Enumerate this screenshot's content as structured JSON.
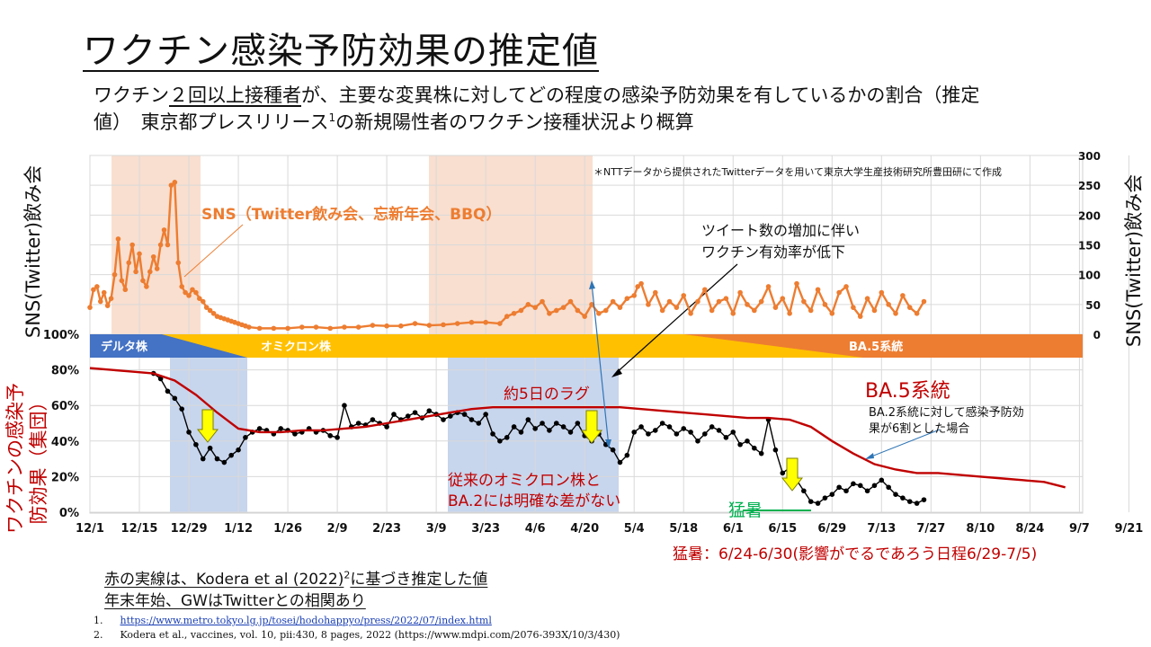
{
  "slide": {
    "title": "ワクチン感染予防効果の推定値",
    "subtitle_line1_before": "ワクチン",
    "subtitle_line1_underlined": "２回以上接種者",
    "subtitle_line1_after": "が、主要な変異株に対してどの程度の感染予防効果を有しているかの割合（推定",
    "subtitle_line2_before": "値）　東京都プレスリリース",
    "subtitle_line2_sup": "1",
    "subtitle_line2_after": "の新規陽性者のワクチン接種状況より概算",
    "note1_before": "赤の実線は、Kodera et al (2022)",
    "note1_sup": "2",
    "note1_after": "に基づき推定した値",
    "note2": "年末年始、GWはTwitterとの相関あり",
    "ref1_num": "1.",
    "ref1_text": "https://www.metro.tokyo.lg.jp/tosei/hodohappyo/press/2022/07/index.html",
    "ref2_num": "2.",
    "ref2_text": "Kodera et al., vaccines, vol. 10, pii:430, 8 pages, 2022 (https://www.mdpi.com/2076-393X/10/3/430)"
  },
  "chart_data": {
    "type": "line",
    "credit": "＊NTTデータから提供されたTwitterデータを用いて東京大学生産技術研究所豊田研にて作成",
    "left_axis_top_label": "SNS(Twitter)飲み会",
    "right_axis_label": "SNS(Twitter)飲み会",
    "left_axis_bottom_label_line1": "ワクチンの感染予",
    "left_axis_bottom_label_line2": "防効果（集団）",
    "x_ticks": [
      "12/1",
      "12/15",
      "12/29",
      "1/12",
      "1/26",
      "2/9",
      "2/23",
      "3/9",
      "3/23",
      "4/6",
      "4/20",
      "5/4",
      "5/18",
      "6/1",
      "6/15",
      "6/29",
      "7/13",
      "7/27",
      "8/10",
      "8/24",
      "9/7",
      "9/21"
    ],
    "y_left_ticks": [
      "0%",
      "20%",
      "40%",
      "60%",
      "80%",
      "100%"
    ],
    "y_right_ticks": [
      "0",
      "50",
      "100",
      "150",
      "200",
      "250",
      "300"
    ],
    "sns_ylim": [
      0,
      300
    ],
    "vaccine_ylim": [
      0,
      100
    ],
    "variant_bands": [
      {
        "label": "デルタ株",
        "color": "#4472c4"
      },
      {
        "label": "オミクロン株",
        "color": "#ffc000"
      },
      {
        "label": "BA.5系統",
        "color": "#ed7d31"
      }
    ],
    "annotations": {
      "sns_label": "SNS（Twitter飲み会、忘新年会、BBQ）",
      "tweet_line1": "ツイート数の増加に伴い",
      "tweet_line2": "ワクチン有効率が低下",
      "lag": "約5日のラグ",
      "omicron_line1": "従来のオミクロン株と",
      "omicron_line2": "BA.2には明確な差がない",
      "ba5_title": "BA.5系統",
      "ba5_line1": "BA.2系統に対して感染予防効",
      "ba5_line2": "果が6割とした場合",
      "heat": "猛暑",
      "heat_note": "猛暑：6/24-6/30(影響がでるであろう日程6/29-7/5)"
    },
    "series": [
      {
        "name": "SNS（Twitter飲み会、忘新年会、BBQ）",
        "color": "#ed7d31",
        "x": [
          0,
          1,
          2,
          3,
          4,
          5,
          6,
          7,
          8,
          9,
          10,
          11,
          12,
          13,
          14,
          15,
          16,
          17,
          18,
          19,
          20,
          21,
          22,
          23,
          24,
          25,
          26,
          27,
          28,
          29,
          30,
          31,
          32,
          33,
          34,
          35,
          36,
          37,
          38,
          39,
          40,
          41,
          42,
          43,
          44,
          45,
          48,
          52,
          56,
          60,
          64,
          68,
          72,
          76,
          80,
          84,
          88,
          92,
          96,
          100,
          104,
          108,
          112,
          116,
          118,
          120,
          122,
          124,
          126,
          128,
          130,
          132,
          134,
          136,
          138,
          140,
          142,
          144,
          146,
          148,
          150,
          152,
          154,
          155,
          156,
          158,
          160,
          162,
          164,
          166,
          168,
          170,
          172,
          174,
          176,
          178,
          180,
          182,
          184,
          186,
          188,
          190,
          192,
          194,
          196,
          198,
          200,
          202,
          204,
          206,
          208,
          210,
          212,
          214,
          216,
          218,
          220,
          222,
          224,
          226,
          228,
          230,
          232,
          234,
          236
        ],
        "values": [
          45,
          75,
          80,
          55,
          70,
          48,
          60,
          100,
          160,
          90,
          75,
          120,
          150,
          105,
          135,
          90,
          80,
          105,
          130,
          110,
          150,
          175,
          150,
          250,
          255,
          120,
          80,
          70,
          65,
          75,
          70,
          60,
          55,
          45,
          40,
          35,
          30,
          28,
          26,
          24,
          22,
          20,
          18,
          16,
          14,
          12,
          10,
          10,
          10,
          12,
          12,
          10,
          12,
          12,
          15,
          14,
          14,
          18,
          15,
          16,
          18,
          20,
          20,
          18,
          30,
          35,
          40,
          50,
          45,
          55,
          35,
          40,
          45,
          55,
          40,
          30,
          50,
          35,
          40,
          55,
          45,
          60,
          65,
          80,
          85,
          50,
          70,
          40,
          55,
          45,
          65,
          35,
          55,
          75,
          40,
          55,
          60,
          35,
          70,
          50,
          40,
          55,
          80,
          45,
          60,
          35,
          85,
          55,
          40,
          75,
          50,
          35,
          70,
          80,
          45,
          30,
          60,
          40,
          70,
          50,
          35,
          65,
          45,
          35,
          55
        ]
      },
      {
        "name": "ワクチンの感染予防効果（集団）",
        "color": "#000000",
        "x": [
          18,
          20,
          22,
          24,
          26,
          28,
          30,
          32,
          34,
          36,
          38,
          40,
          42,
          44,
          46,
          48,
          50,
          52,
          54,
          56,
          58,
          60,
          62,
          64,
          66,
          68,
          70,
          72,
          74,
          76,
          78,
          80,
          82,
          84,
          86,
          88,
          90,
          92,
          94,
          96,
          98,
          100,
          102,
          104,
          106,
          108,
          110,
          112,
          114,
          116,
          118,
          120,
          122,
          124,
          126,
          128,
          130,
          132,
          134,
          136,
          138,
          140,
          142,
          144,
          146,
          148,
          150,
          152,
          154,
          156,
          158,
          160,
          162,
          164,
          166,
          168,
          170,
          172,
          174,
          176,
          178,
          180,
          182,
          184,
          186,
          188,
          190,
          192,
          194,
          196,
          198,
          200,
          202,
          204,
          206,
          208,
          210,
          212,
          214,
          216,
          218,
          220,
          222,
          224,
          226,
          228,
          230,
          232,
          234,
          236
        ],
        "values": [
          78,
          75,
          68,
          64,
          58,
          45,
          38,
          30,
          36,
          30,
          28,
          32,
          35,
          42,
          45,
          47,
          46,
          44,
          47,
          46,
          44,
          45,
          47,
          45,
          46,
          43,
          42,
          60,
          48,
          50,
          49,
          52,
          50,
          48,
          55,
          52,
          54,
          56,
          53,
          57,
          55,
          52,
          54,
          56,
          55,
          52,
          50,
          55,
          44,
          40,
          42,
          48,
          45,
          52,
          47,
          50,
          46,
          50,
          48,
          45,
          50,
          43,
          40,
          44,
          38,
          35,
          28,
          32,
          45,
          48,
          44,
          46,
          50,
          48,
          44,
          47,
          45,
          40,
          44,
          48,
          46,
          42,
          45,
          38,
          40,
          36,
          33,
          52,
          35,
          22,
          25,
          18,
          12,
          6,
          5,
          8,
          10,
          14,
          12,
          16,
          15,
          12,
          15,
          18,
          14,
          10,
          8,
          6,
          5,
          7
        ]
      },
      {
        "name": "Kodera et al (2022) 推定値",
        "color": "#c00000",
        "x": [
          0,
          6,
          12,
          18,
          24,
          30,
          36,
          42,
          48,
          54,
          60,
          66,
          72,
          78,
          84,
          90,
          96,
          102,
          108,
          114,
          120,
          126,
          132,
          138,
          144,
          150,
          156,
          162,
          168,
          174,
          180,
          186,
          192,
          198,
          204,
          210,
          216,
          222,
          228,
          234,
          240,
          246,
          252,
          258,
          264,
          270,
          276
        ],
        "values": [
          81,
          80,
          79,
          78,
          74,
          66,
          56,
          47,
          45,
          45,
          46,
          46,
          47,
          48,
          50,
          52,
          54,
          56,
          58,
          59,
          59,
          59,
          59,
          59,
          59,
          59,
          58,
          57,
          56,
          55,
          54,
          53,
          53,
          52,
          48,
          40,
          33,
          27,
          24,
          22,
          22,
          21,
          20,
          19,
          18,
          17,
          14
        ]
      }
    ],
    "lag_marker_days": [
      122,
      156,
      159
    ],
    "heat_days": [
      205,
      211
    ]
  }
}
